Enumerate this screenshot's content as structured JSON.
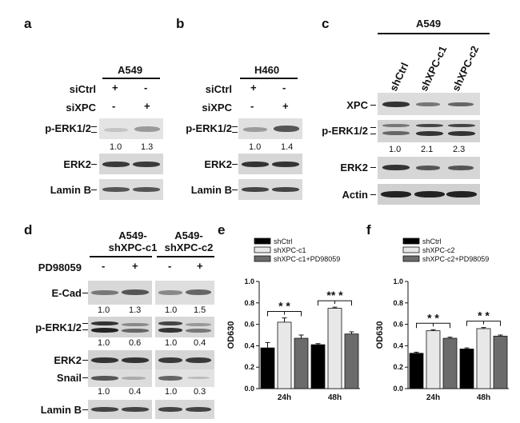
{
  "panels": {
    "a": "a",
    "b": "b",
    "c": "c",
    "d": "d",
    "e": "e",
    "f": "f"
  },
  "a": {
    "cell": "A549",
    "sictrl": "siCtrl",
    "sixpc": "siXPC",
    "sictrl_marks": [
      "+",
      "-"
    ],
    "sixpc_marks": [
      "-",
      "+"
    ],
    "perk": "p-ERK1/2",
    "erk2": "ERK2",
    "laminb": "Lamin B",
    "quant": [
      "1.0",
      "1.3"
    ]
  },
  "b": {
    "cell": "H460",
    "sictrl": "siCtrl",
    "sixpc": "siXPC",
    "sictrl_marks": [
      "+",
      "-"
    ],
    "sixpc_marks": [
      "-",
      "+"
    ],
    "perk": "p-ERK1/2",
    "erk2": "ERK2",
    "laminb": "Lamin B",
    "quant": [
      "1.0",
      "1.4"
    ]
  },
  "c": {
    "cell": "A549",
    "lanes": [
      "shCtrl",
      "shXPC-c1",
      "shXPC-c2"
    ],
    "xpc": "XPC",
    "perk": "p-ERK1/2",
    "erk2": "ERK2",
    "actin": "Actin",
    "quant": [
      "1.0",
      "2.1",
      "2.3"
    ]
  },
  "d": {
    "group1": "A549-\nshXPC-c1",
    "group2": "A549-\nshXPC-c2",
    "pd": "PD98059",
    "pd_marks": [
      "-",
      "+",
      "-",
      "+"
    ],
    "ecad": "E-Cad",
    "perk": "p-ERK1/2",
    "erk2": "ERK2",
    "snail": "Snail",
    "laminb": "Lamin B",
    "ecad_q": [
      "1.0",
      "1.3",
      "1.0",
      "1.5"
    ],
    "perk_q": [
      "1.0",
      "0.6",
      "1.0",
      "0.4"
    ],
    "snail_q": [
      "1.0",
      "0.4",
      "1.0",
      "0.3"
    ]
  },
  "chart_data": [
    {
      "type": "bar",
      "categories": [
        "24h",
        "48h"
      ],
      "ylabel": "OD630",
      "ylim": [
        0,
        1.0
      ],
      "yticks": [
        "0.0",
        "0.2",
        "0.4",
        "0.6",
        "0.8",
        "1.0"
      ],
      "legend": "top-left",
      "series": [
        {
          "name": "shCtrl",
          "values": [
            0.38,
            0.41
          ],
          "errors": [
            0.05,
            0.01
          ],
          "color": "#000000"
        },
        {
          "name": "shXPC-c1",
          "values": [
            0.62,
            0.75
          ],
          "errors": [
            0.04,
            0.01
          ],
          "color": "#e8e8e8"
        },
        {
          "name": "shXPC-c1+PD98059",
          "values": [
            0.47,
            0.51
          ],
          "errors": [
            0.03,
            0.02
          ],
          "color": "#6b6b6b"
        }
      ],
      "annotations": [
        {
          "group": 0,
          "text": "* *"
        },
        {
          "group": 1,
          "text": "** *"
        }
      ]
    },
    {
      "type": "bar",
      "categories": [
        "24h",
        "48h"
      ],
      "ylabel": "OD630",
      "ylim": [
        0,
        1.0
      ],
      "yticks": [
        "0.0",
        "0.2",
        "0.4",
        "0.6",
        "0.8",
        "1.0"
      ],
      "legend": "top-left",
      "series": [
        {
          "name": "shCtrl",
          "values": [
            0.33,
            0.37
          ],
          "errors": [
            0.01,
            0.01
          ],
          "color": "#000000"
        },
        {
          "name": "shXPC-c2",
          "values": [
            0.54,
            0.56
          ],
          "errors": [
            0.01,
            0.01
          ],
          "color": "#e8e8e8"
        },
        {
          "name": "shXPC-c2+PD98059",
          "values": [
            0.47,
            0.49
          ],
          "errors": [
            0.01,
            0.01
          ],
          "color": "#6b6b6b"
        }
      ],
      "annotations": [
        {
          "group": 0,
          "text": "* *"
        },
        {
          "group": 1,
          "text": "* *"
        }
      ]
    }
  ]
}
